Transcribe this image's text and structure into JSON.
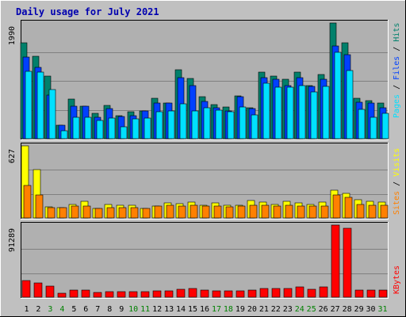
{
  "title": "Daily usage for July 2021",
  "colors": {
    "background": "#c0c0c0",
    "panel": "#b0b0b0",
    "title": "#0000b0",
    "hits": "#00806b",
    "files": "#0040ff",
    "pages": "#00e0ff",
    "visits": "#ffff00",
    "sites": "#ff8000",
    "kbytes": "#ff0000",
    "weekend": "#008000",
    "weekday": "#000000"
  },
  "chart_data": [
    {
      "type": "bar",
      "panel": "top",
      "max_label": "1990",
      "ylim": [
        0,
        1990
      ],
      "legend": [
        "Pages",
        "Files",
        "Hits"
      ],
      "categories": [
        "1",
        "2",
        "3",
        "4",
        "5",
        "6",
        "7",
        "8",
        "9",
        "10",
        "11",
        "12",
        "13",
        "14",
        "15",
        "16",
        "17",
        "18",
        "19",
        "20",
        "21",
        "22",
        "23",
        "24",
        "25",
        "26",
        "27",
        "28",
        "29",
        "30",
        "31"
      ],
      "series": [
        {
          "name": "Hits",
          "values": [
            1650,
            1420,
            1070,
            230,
            680,
            560,
            430,
            570,
            400,
            460,
            480,
            700,
            610,
            1190,
            1040,
            720,
            590,
            540,
            740,
            530,
            1140,
            1070,
            1020,
            1140,
            910,
            1110,
            2000,
            1650,
            690,
            650,
            620
          ]
        },
        {
          "name": "Files",
          "values": [
            1410,
            1220,
            750,
            230,
            560,
            560,
            370,
            520,
            380,
            390,
            480,
            620,
            610,
            1050,
            920,
            640,
            530,
            480,
            720,
            520,
            1050,
            1020,
            920,
            1050,
            900,
            1020,
            1600,
            1450,
            630,
            620,
            530
          ]
        },
        {
          "name": "Pages",
          "values": [
            1160,
            1140,
            840,
            130,
            370,
            370,
            320,
            350,
            210,
            340,
            350,
            470,
            480,
            600,
            480,
            530,
            490,
            460,
            540,
            410,
            950,
            880,
            880,
            910,
            810,
            900,
            1480,
            1170,
            500,
            370,
            440
          ]
        }
      ]
    },
    {
      "type": "bar",
      "panel": "middle",
      "max_label": "627",
      "ylim": [
        0,
        627
      ],
      "legend": [
        "Sites",
        "Visits"
      ],
      "categories": [
        "1",
        "2",
        "3",
        "4",
        "5",
        "6",
        "7",
        "8",
        "9",
        "10",
        "11",
        "12",
        "13",
        "14",
        "15",
        "16",
        "17",
        "18",
        "19",
        "20",
        "21",
        "22",
        "23",
        "24",
        "25",
        "26",
        "27",
        "28",
        "29",
        "30",
        "31"
      ],
      "series": [
        {
          "name": "Visits",
          "values": [
            640,
            420,
            95,
            90,
            115,
            145,
            85,
            120,
            110,
            110,
            85,
            100,
            130,
            125,
            140,
            110,
            130,
            110,
            110,
            150,
            140,
            120,
            145,
            130,
            115,
            135,
            240,
            215,
            160,
            145,
            135
          ]
        },
        {
          "name": "Sites",
          "values": [
            280,
            200,
            90,
            90,
            100,
            100,
            85,
            90,
            90,
            90,
            80,
            100,
            110,
            105,
            110,
            105,
            100,
            95,
            100,
            110,
            110,
            100,
            110,
            105,
            100,
            100,
            200,
            180,
            120,
            110,
            110
          ]
        }
      ]
    },
    {
      "type": "bar",
      "panel": "bottom",
      "max_label": "91289",
      "ylim": [
        0,
        91289
      ],
      "legend": [
        "KBytes"
      ],
      "categories": [
        "1",
        "2",
        "3",
        "4",
        "5",
        "6",
        "7",
        "8",
        "9",
        "10",
        "11",
        "12",
        "13",
        "14",
        "15",
        "16",
        "17",
        "18",
        "19",
        "20",
        "21",
        "22",
        "23",
        "24",
        "25",
        "26",
        "27",
        "28",
        "29",
        "30",
        "31"
      ],
      "series": [
        {
          "name": "KBytes",
          "values": [
            21000,
            18000,
            14000,
            5000,
            9000,
            9000,
            6500,
            7500,
            7000,
            7000,
            7000,
            8000,
            8000,
            10000,
            11000,
            9000,
            8500,
            8500,
            8500,
            9000,
            11000,
            11000,
            11000,
            13000,
            10000,
            13000,
            91289,
            87000,
            9000,
            9000,
            9000
          ]
        }
      ]
    }
  ],
  "day_labels": [
    {
      "label": "1",
      "weekend": false
    },
    {
      "label": "2",
      "weekend": false
    },
    {
      "label": "3",
      "weekend": true
    },
    {
      "label": "4",
      "weekend": true
    },
    {
      "label": "5",
      "weekend": false
    },
    {
      "label": "6",
      "weekend": false
    },
    {
      "label": "7",
      "weekend": false
    },
    {
      "label": "8",
      "weekend": false
    },
    {
      "label": "9",
      "weekend": false
    },
    {
      "label": "10",
      "weekend": true
    },
    {
      "label": "11",
      "weekend": true
    },
    {
      "label": "12",
      "weekend": false
    },
    {
      "label": "13",
      "weekend": false
    },
    {
      "label": "14",
      "weekend": false
    },
    {
      "label": "15",
      "weekend": false
    },
    {
      "label": "16",
      "weekend": false
    },
    {
      "label": "17",
      "weekend": true
    },
    {
      "label": "18",
      "weekend": true
    },
    {
      "label": "19",
      "weekend": false
    },
    {
      "label": "20",
      "weekend": false
    },
    {
      "label": "21",
      "weekend": false
    },
    {
      "label": "22",
      "weekend": false
    },
    {
      "label": "23",
      "weekend": false
    },
    {
      "label": "24",
      "weekend": true
    },
    {
      "label": "25",
      "weekend": true
    },
    {
      "label": "26",
      "weekend": false
    },
    {
      "label": "27",
      "weekend": false
    },
    {
      "label": "28",
      "weekend": false
    },
    {
      "label": "29",
      "weekend": false
    },
    {
      "label": "30",
      "weekend": false
    },
    {
      "label": "31",
      "weekend": true
    }
  ]
}
